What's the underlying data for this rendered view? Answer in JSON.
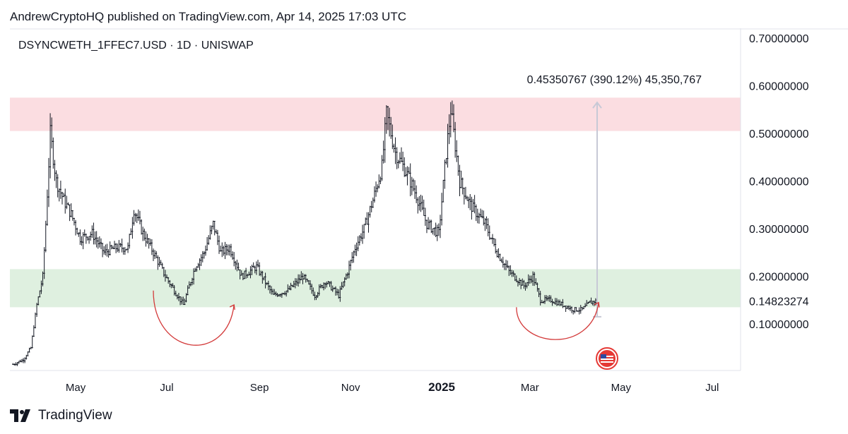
{
  "header": {
    "published": "AndrewCryptoHQ published on TradingView.com, Apr 14, 2025 17:03 UTC"
  },
  "footer": {
    "brand": "TradingView"
  },
  "colors": {
    "resistance_zone": "#fbdde1",
    "support_zone": "#dff0e0",
    "candles": "#131722",
    "annotation_curve": "#d33a3a",
    "measure_arrow": "#c7c9d6",
    "flag_red": "#e53935"
  },
  "chart_data": {
    "type": "candlestick",
    "symbol_label": "DSYNCWETH_1FFEC7.USD · 1D · UNISWAP",
    "y_scale": "linear",
    "ylim": [
      0.0,
      0.72
    ],
    "y_ticks": [
      {
        "value": 0.7,
        "label": "0.70000000"
      },
      {
        "value": 0.6,
        "label": "0.60000000"
      },
      {
        "value": 0.5,
        "label": "0.50000000"
      },
      {
        "value": 0.4,
        "label": "0.40000000"
      },
      {
        "value": 0.3,
        "label": "0.30000000"
      },
      {
        "value": 0.2,
        "label": "0.20000000"
      },
      {
        "value": 0.1,
        "label": "0.10000000"
      }
    ],
    "last_price_label": {
      "value": 0.14823274,
      "label": "0.14823274"
    },
    "x_ticks": [
      {
        "date": "2024-05-01",
        "label": "May",
        "bold": false
      },
      {
        "date": "2024-07-01",
        "label": "Jul",
        "bold": false
      },
      {
        "date": "2024-09-01",
        "label": "Sep",
        "bold": false
      },
      {
        "date": "2024-11-01",
        "label": "Nov",
        "bold": false
      },
      {
        "date": "2025-01-01",
        "label": "2025",
        "bold": true
      },
      {
        "date": "2025-03-01",
        "label": "Mar",
        "bold": false
      },
      {
        "date": "2025-05-01",
        "label": "May",
        "bold": false
      },
      {
        "date": "2025-07-01",
        "label": "Jul",
        "bold": false
      }
    ],
    "xlim": [
      "2024-03-18",
      "2025-07-20"
    ],
    "zones": [
      {
        "name": "resistance",
        "low": 0.505,
        "high": 0.575
      },
      {
        "name": "support",
        "low": 0.135,
        "high": 0.215
      }
    ],
    "measure": {
      "from_date": "2025-04-15",
      "from": 0.115,
      "to": 0.565,
      "label": "0.45350767 (390.12%) 45,350,767"
    },
    "annotations": [
      {
        "type": "curve-arrow",
        "from_date": "2024-06-22",
        "to_date": "2024-08-15",
        "from": 0.17,
        "to": 0.14,
        "dip": 0.06
      },
      {
        "type": "curve-arrow",
        "from_date": "2025-02-20",
        "to_date": "2025-04-16",
        "from": 0.135,
        "to": 0.145,
        "dip": 0.08
      }
    ],
    "price_path": [
      [
        "2024-03-20",
        0.015
      ],
      [
        "2024-03-27",
        0.025
      ],
      [
        "2024-04-01",
        0.05
      ],
      [
        "2024-04-05",
        0.14
      ],
      [
        "2024-04-09",
        0.2
      ],
      [
        "2024-04-11",
        0.31
      ],
      [
        "2024-04-14",
        0.5
      ],
      [
        "2024-04-18",
        0.4
      ],
      [
        "2024-04-23",
        0.36
      ],
      [
        "2024-04-28",
        0.33
      ],
      [
        "2024-05-04",
        0.28
      ],
      [
        "2024-05-12",
        0.29
      ],
      [
        "2024-05-20",
        0.25
      ],
      [
        "2024-05-28",
        0.26
      ],
      [
        "2024-06-05",
        0.26
      ],
      [
        "2024-06-09",
        0.34
      ],
      [
        "2024-06-15",
        0.29
      ],
      [
        "2024-06-22",
        0.25
      ],
      [
        "2024-06-30",
        0.2
      ],
      [
        "2024-07-06",
        0.17
      ],
      [
        "2024-07-12",
        0.14
      ],
      [
        "2024-07-20",
        0.22
      ],
      [
        "2024-07-26",
        0.25
      ],
      [
        "2024-08-01",
        0.31
      ],
      [
        "2024-08-06",
        0.25
      ],
      [
        "2024-08-12",
        0.26
      ],
      [
        "2024-08-20",
        0.2
      ],
      [
        "2024-08-30",
        0.22
      ],
      [
        "2024-09-10",
        0.16
      ],
      [
        "2024-09-20",
        0.17
      ],
      [
        "2024-09-30",
        0.2
      ],
      [
        "2024-10-08",
        0.16
      ],
      [
        "2024-10-15",
        0.19
      ],
      [
        "2024-10-24",
        0.16
      ],
      [
        "2024-10-30",
        0.21
      ],
      [
        "2024-11-04",
        0.26
      ],
      [
        "2024-11-10",
        0.3
      ],
      [
        "2024-11-16",
        0.36
      ],
      [
        "2024-11-22",
        0.43
      ],
      [
        "2024-11-25",
        0.54
      ],
      [
        "2024-12-01",
        0.46
      ],
      [
        "2024-12-08",
        0.42
      ],
      [
        "2024-12-15",
        0.37
      ],
      [
        "2024-12-22",
        0.31
      ],
      [
        "2024-12-30",
        0.29
      ],
      [
        "2025-01-04",
        0.46
      ],
      [
        "2025-01-07",
        0.55
      ],
      [
        "2025-01-13",
        0.4
      ],
      [
        "2025-01-20",
        0.35
      ],
      [
        "2025-01-30",
        0.31
      ],
      [
        "2025-02-07",
        0.25
      ],
      [
        "2025-02-15",
        0.21
      ],
      [
        "2025-02-25",
        0.18
      ],
      [
        "2025-03-03",
        0.2
      ],
      [
        "2025-03-08",
        0.15
      ],
      [
        "2025-03-15",
        0.15
      ],
      [
        "2025-03-23",
        0.14
      ],
      [
        "2025-03-30",
        0.13
      ],
      [
        "2025-04-05",
        0.13
      ],
      [
        "2025-04-10",
        0.145
      ],
      [
        "2025-04-14",
        0.148
      ]
    ]
  }
}
